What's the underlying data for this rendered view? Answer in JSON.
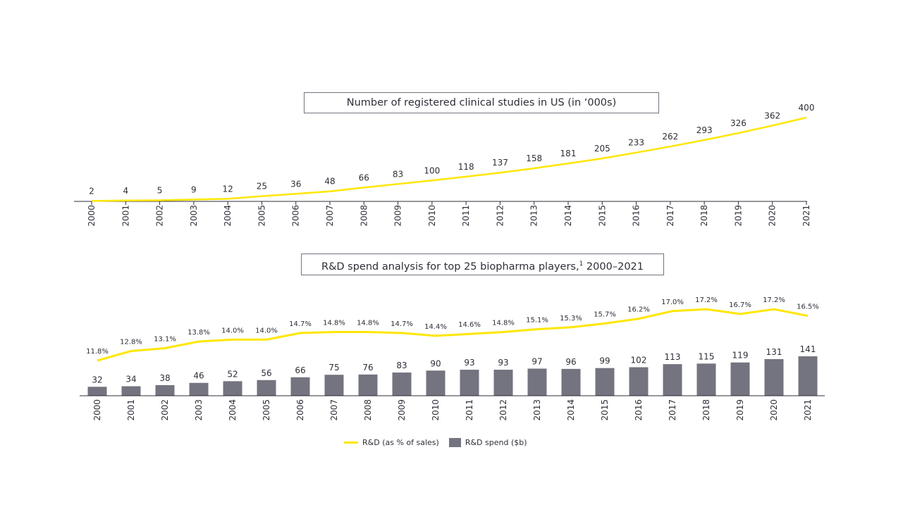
{
  "chart_data": [
    {
      "type": "line",
      "title": "Number of registered clinical studies in US (in ‘000s)",
      "categories": [
        "2000",
        "2001",
        "2002",
        "2003",
        "2004",
        "2005",
        "2006",
        "2007",
        "2008",
        "2009",
        "2010",
        "2011",
        "2012",
        "2013",
        "2014",
        "2015",
        "2016",
        "2017",
        "2018",
        "2019",
        "2020",
        "2021"
      ],
      "series": [
        {
          "name": "Registered clinical studies ('000s)",
          "values": [
            2,
            4,
            5,
            9,
            12,
            25,
            36,
            48,
            66,
            83,
            100,
            118,
            137,
            158,
            181,
            205,
            233,
            262,
            293,
            326,
            362,
            400
          ],
          "color": "#ffe600"
        }
      ],
      "ylim": [
        0,
        400
      ]
    },
    {
      "type": "bar",
      "title": "R&D spend analysis for top 25 biopharma players,",
      "title_sup": "1",
      "title_suffix": " 2000–2021",
      "categories": [
        "2000",
        "2001",
        "2002",
        "2003",
        "2004",
        "2005",
        "2006",
        "2007",
        "2008",
        "2009",
        "2010",
        "2011",
        "2012",
        "2013",
        "2014",
        "2015",
        "2016",
        "2017",
        "2018",
        "2019",
        "2020",
        "2021"
      ],
      "series": [
        {
          "name": "R&D spend ($b)",
          "type": "bar",
          "values": [
            32,
            34,
            38,
            46,
            52,
            56,
            66,
            75,
            76,
            83,
            90,
            93,
            93,
            97,
            96,
            99,
            102,
            113,
            115,
            119,
            131,
            141
          ],
          "color": "#747480"
        },
        {
          "name": "R&D (as % of sales)",
          "type": "line",
          "values": [
            11.8,
            12.8,
            13.1,
            13.8,
            14.0,
            14.0,
            14.7,
            14.8,
            14.8,
            14.7,
            14.4,
            14.6,
            14.8,
            15.1,
            15.3,
            15.7,
            16.2,
            17.0,
            17.2,
            16.7,
            17.2,
            16.5
          ],
          "color": "#ffe600"
        }
      ],
      "legend": {
        "position": "bottom",
        "line_label": "R&D (as % of sales)",
        "bar_label": "R&D spend ($b)"
      }
    }
  ]
}
